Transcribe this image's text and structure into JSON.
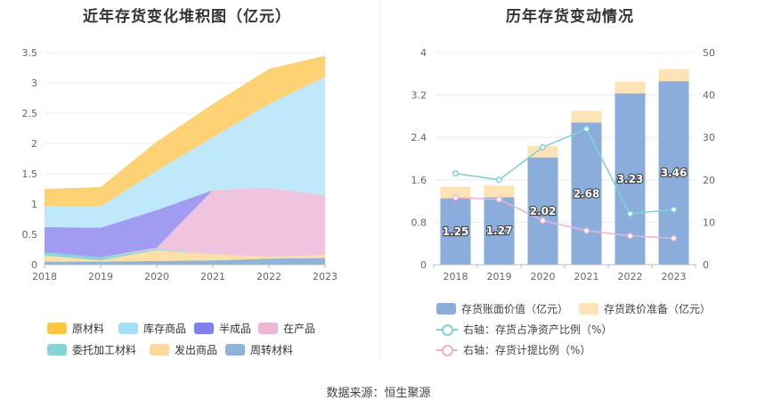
{
  "source": "数据来源：恒生聚源",
  "chart_data": [
    {
      "type": "area",
      "stacked": true,
      "title": "近年存货变化堆积图（亿元）",
      "categories": [
        "2018",
        "2019",
        "2020",
        "2021",
        "2022",
        "2023"
      ],
      "ylim": [
        0,
        3.5
      ],
      "yticks": [
        "0",
        "0.5",
        "1",
        "1.5",
        "2",
        "2.5",
        "3",
        "3.5"
      ],
      "series": [
        {
          "name": "周转材料",
          "color": "#8fb3d9",
          "values": [
            0.05,
            0.05,
            0.06,
            0.07,
            0.1,
            0.11
          ]
        },
        {
          "name": "发出商品",
          "color": "#fddfa8",
          "values": [
            0.1,
            0.02,
            0.18,
            0.1,
            0.03,
            0.05
          ]
        },
        {
          "name": "委托加工材料",
          "color": "#8dd6d6",
          "values": [
            0.05,
            0.05,
            0.02,
            0.0,
            0.0,
            0.0
          ]
        },
        {
          "name": "在产品",
          "color": "#f0c4de",
          "values": [
            0.0,
            0.0,
            0.02,
            1.06,
            1.14,
            0.98
          ]
        },
        {
          "name": "半成品",
          "color": "#a09cf2",
          "values": [
            0.42,
            0.49,
            0.62,
            0.0,
            0.0,
            0.0
          ]
        },
        {
          "name": "库存商品",
          "color": "#bfe8fa",
          "values": [
            0.34,
            0.35,
            0.65,
            0.87,
            1.38,
            1.96
          ]
        },
        {
          "name": "原材料",
          "color": "#fcd274",
          "values": [
            0.29,
            0.32,
            0.48,
            0.55,
            0.58,
            0.35
          ]
        }
      ],
      "legend": [
        {
          "name": "原材料",
          "color": "#fcc640"
        },
        {
          "name": "库存商品",
          "color": "#a6e0f8"
        },
        {
          "name": "半成品",
          "color": "#8080ee"
        },
        {
          "name": "在产品",
          "color": "#ecb8d6"
        },
        {
          "name": "委托加工材料",
          "color": "#86d4d4"
        },
        {
          "name": "发出商品",
          "color": "#fdd9a0"
        },
        {
          "name": "周转材料",
          "color": "#8fb3d9"
        }
      ]
    },
    {
      "type": "bar+line",
      "title": "历年存货变动情况",
      "categories": [
        "2018",
        "2019",
        "2020",
        "2021",
        "2022",
        "2023"
      ],
      "ylim_left": [
        0,
        4
      ],
      "yticks_left": [
        "0",
        "0.8",
        "1.6",
        "2.4",
        "3.2",
        "4"
      ],
      "ylim_right": [
        0,
        50
      ],
      "yticks_right": [
        "0",
        "10",
        "20",
        "30",
        "40",
        "50"
      ],
      "bars": [
        {
          "name": "存货账面价值（亿元）",
          "color": "#8aaddb",
          "values": [
            1.25,
            1.27,
            2.02,
            2.68,
            3.23,
            3.46
          ],
          "labels": [
            "1.25",
            "1.27",
            "2.02",
            "2.68",
            "3.23",
            "3.46"
          ]
        },
        {
          "name": "存货跌价准备（亿元）",
          "color": "#fde3b6",
          "values": [
            0.22,
            0.22,
            0.22,
            0.22,
            0.22,
            0.23
          ]
        }
      ],
      "lines": [
        {
          "name": "右轴：存货占净资产比例（%）",
          "color": "#7ed3d3",
          "values": [
            21.5,
            20.0,
            27.7,
            32.0,
            12.0,
            13.0
          ]
        },
        {
          "name": "右轴：存货计提比例（%）",
          "color": "#e9b3d3",
          "values": [
            15.8,
            15.4,
            10.4,
            8.0,
            6.8,
            6.2
          ]
        }
      ]
    }
  ]
}
